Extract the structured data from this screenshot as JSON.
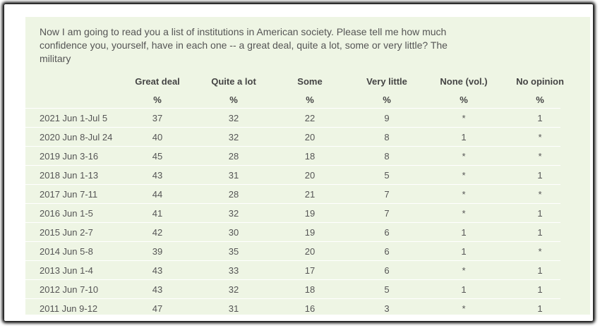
{
  "question": "Now I am going to read you a list of institutions in American society. Please tell me how much confidence you, yourself, have in each one -- a great deal, quite a lot, some or very little? The military",
  "table": {
    "columns": [
      "Great deal",
      "Quite a lot",
      "Some",
      "Very little",
      "None (vol.)",
      "No opinion"
    ],
    "units": [
      "%",
      "%",
      "%",
      "%",
      "%",
      "%"
    ],
    "rows": [
      [
        "2021 Jun 1-Jul 5",
        "37",
        "32",
        "22",
        "9",
        "*",
        "1"
      ],
      [
        "2020 Jun 8-Jul 24",
        "40",
        "32",
        "20",
        "8",
        "1",
        "*"
      ],
      [
        "2019 Jun 3-16",
        "45",
        "28",
        "18",
        "8",
        "*",
        "*"
      ],
      [
        "2018 Jun 1-13",
        "43",
        "31",
        "20",
        "5",
        "*",
        "1"
      ],
      [
        "2017 Jun 7-11",
        "44",
        "28",
        "21",
        "7",
        "*",
        "*"
      ],
      [
        "2016 Jun 1-5",
        "41",
        "32",
        "19",
        "7",
        "*",
        "1"
      ],
      [
        "2015 Jun 2-7",
        "42",
        "30",
        "19",
        "6",
        "1",
        "1"
      ],
      [
        "2014 Jun 5-8",
        "39",
        "35",
        "20",
        "6",
        "1",
        "*"
      ],
      [
        "2013 Jun 1-4",
        "43",
        "33",
        "17",
        "6",
        "*",
        "1"
      ],
      [
        "2012 Jun 7-10",
        "43",
        "32",
        "18",
        "5",
        "1",
        "1"
      ],
      [
        "2011 Jun 9-12",
        "47",
        "31",
        "16",
        "3",
        "*",
        "1"
      ]
    ]
  }
}
